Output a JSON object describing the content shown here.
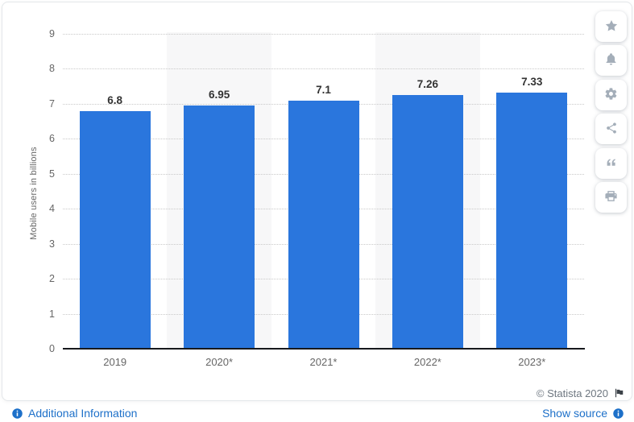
{
  "chart_data": {
    "type": "bar",
    "categories": [
      "2019",
      "2020*",
      "2021*",
      "2022*",
      "2023*"
    ],
    "values": [
      6.8,
      6.95,
      7.1,
      7.26,
      7.33
    ],
    "value_labels": [
      "6.8",
      "6.95",
      "7.1",
      "7.26",
      "7.33"
    ],
    "title": "",
    "xlabel": "",
    "ylabel": "Mobile users in billions",
    "ylim": [
      0,
      9
    ],
    "yticks": [
      0,
      1,
      2,
      3,
      4,
      5,
      6,
      7,
      8,
      9
    ],
    "grid": "horizontal-dotted",
    "legend": "none",
    "banded_columns": [
      1,
      3
    ],
    "bar_color": "#2a76dd",
    "band_color": "#f7f7f8",
    "gridline_color": "#c9c9c9",
    "axis_line_color": "#17191c",
    "tick_color": "#666666",
    "value_label_color": "#333333"
  },
  "toolbar": {
    "buttons": [
      {
        "name": "favorite",
        "icon": "star-icon"
      },
      {
        "name": "notifications",
        "icon": "bell-icon"
      },
      {
        "name": "settings",
        "icon": "gear-icon"
      },
      {
        "name": "share",
        "icon": "share-icon"
      },
      {
        "name": "cite",
        "icon": "quote-icon"
      },
      {
        "name": "print",
        "icon": "printer-icon"
      }
    ]
  },
  "footer": {
    "copyright": "© Statista 2020",
    "additional_info_label": "Additional Information",
    "show_source_label": "Show source"
  },
  "colors": {
    "accent_blue": "#2a76dd",
    "link_blue": "#1d70c9",
    "icon_gray": "#a4aeb9",
    "copyright_gray": "#6e7780",
    "card_border": "#e4e7ea"
  }
}
